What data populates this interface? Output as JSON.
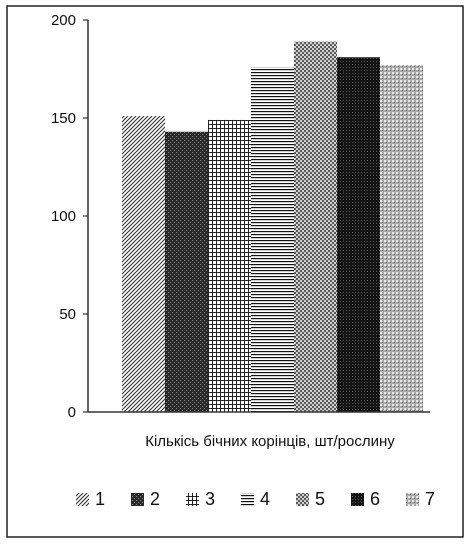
{
  "chart_data": {
    "type": "bar",
    "title": "",
    "xlabel": "Кількісь бічних корінців, шт/рослину",
    "ylabel": "",
    "ylim": [
      0,
      200
    ],
    "yticks": [
      0,
      50,
      100,
      150,
      200
    ],
    "grid": false,
    "legend_position": "bottom",
    "series": [
      {
        "name": "1",
        "value": 151,
        "pattern": "diag-fine"
      },
      {
        "name": "2",
        "value": 143,
        "pattern": "dark-check"
      },
      {
        "name": "3",
        "value": 149,
        "pattern": "hash"
      },
      {
        "name": "4",
        "value": 176,
        "pattern": "horizontal"
      },
      {
        "name": "5",
        "value": 189,
        "pattern": "dot-grid"
      },
      {
        "name": "6",
        "value": 181,
        "pattern": "dark-dense"
      },
      {
        "name": "7",
        "value": 177,
        "pattern": "light-dots"
      }
    ]
  }
}
